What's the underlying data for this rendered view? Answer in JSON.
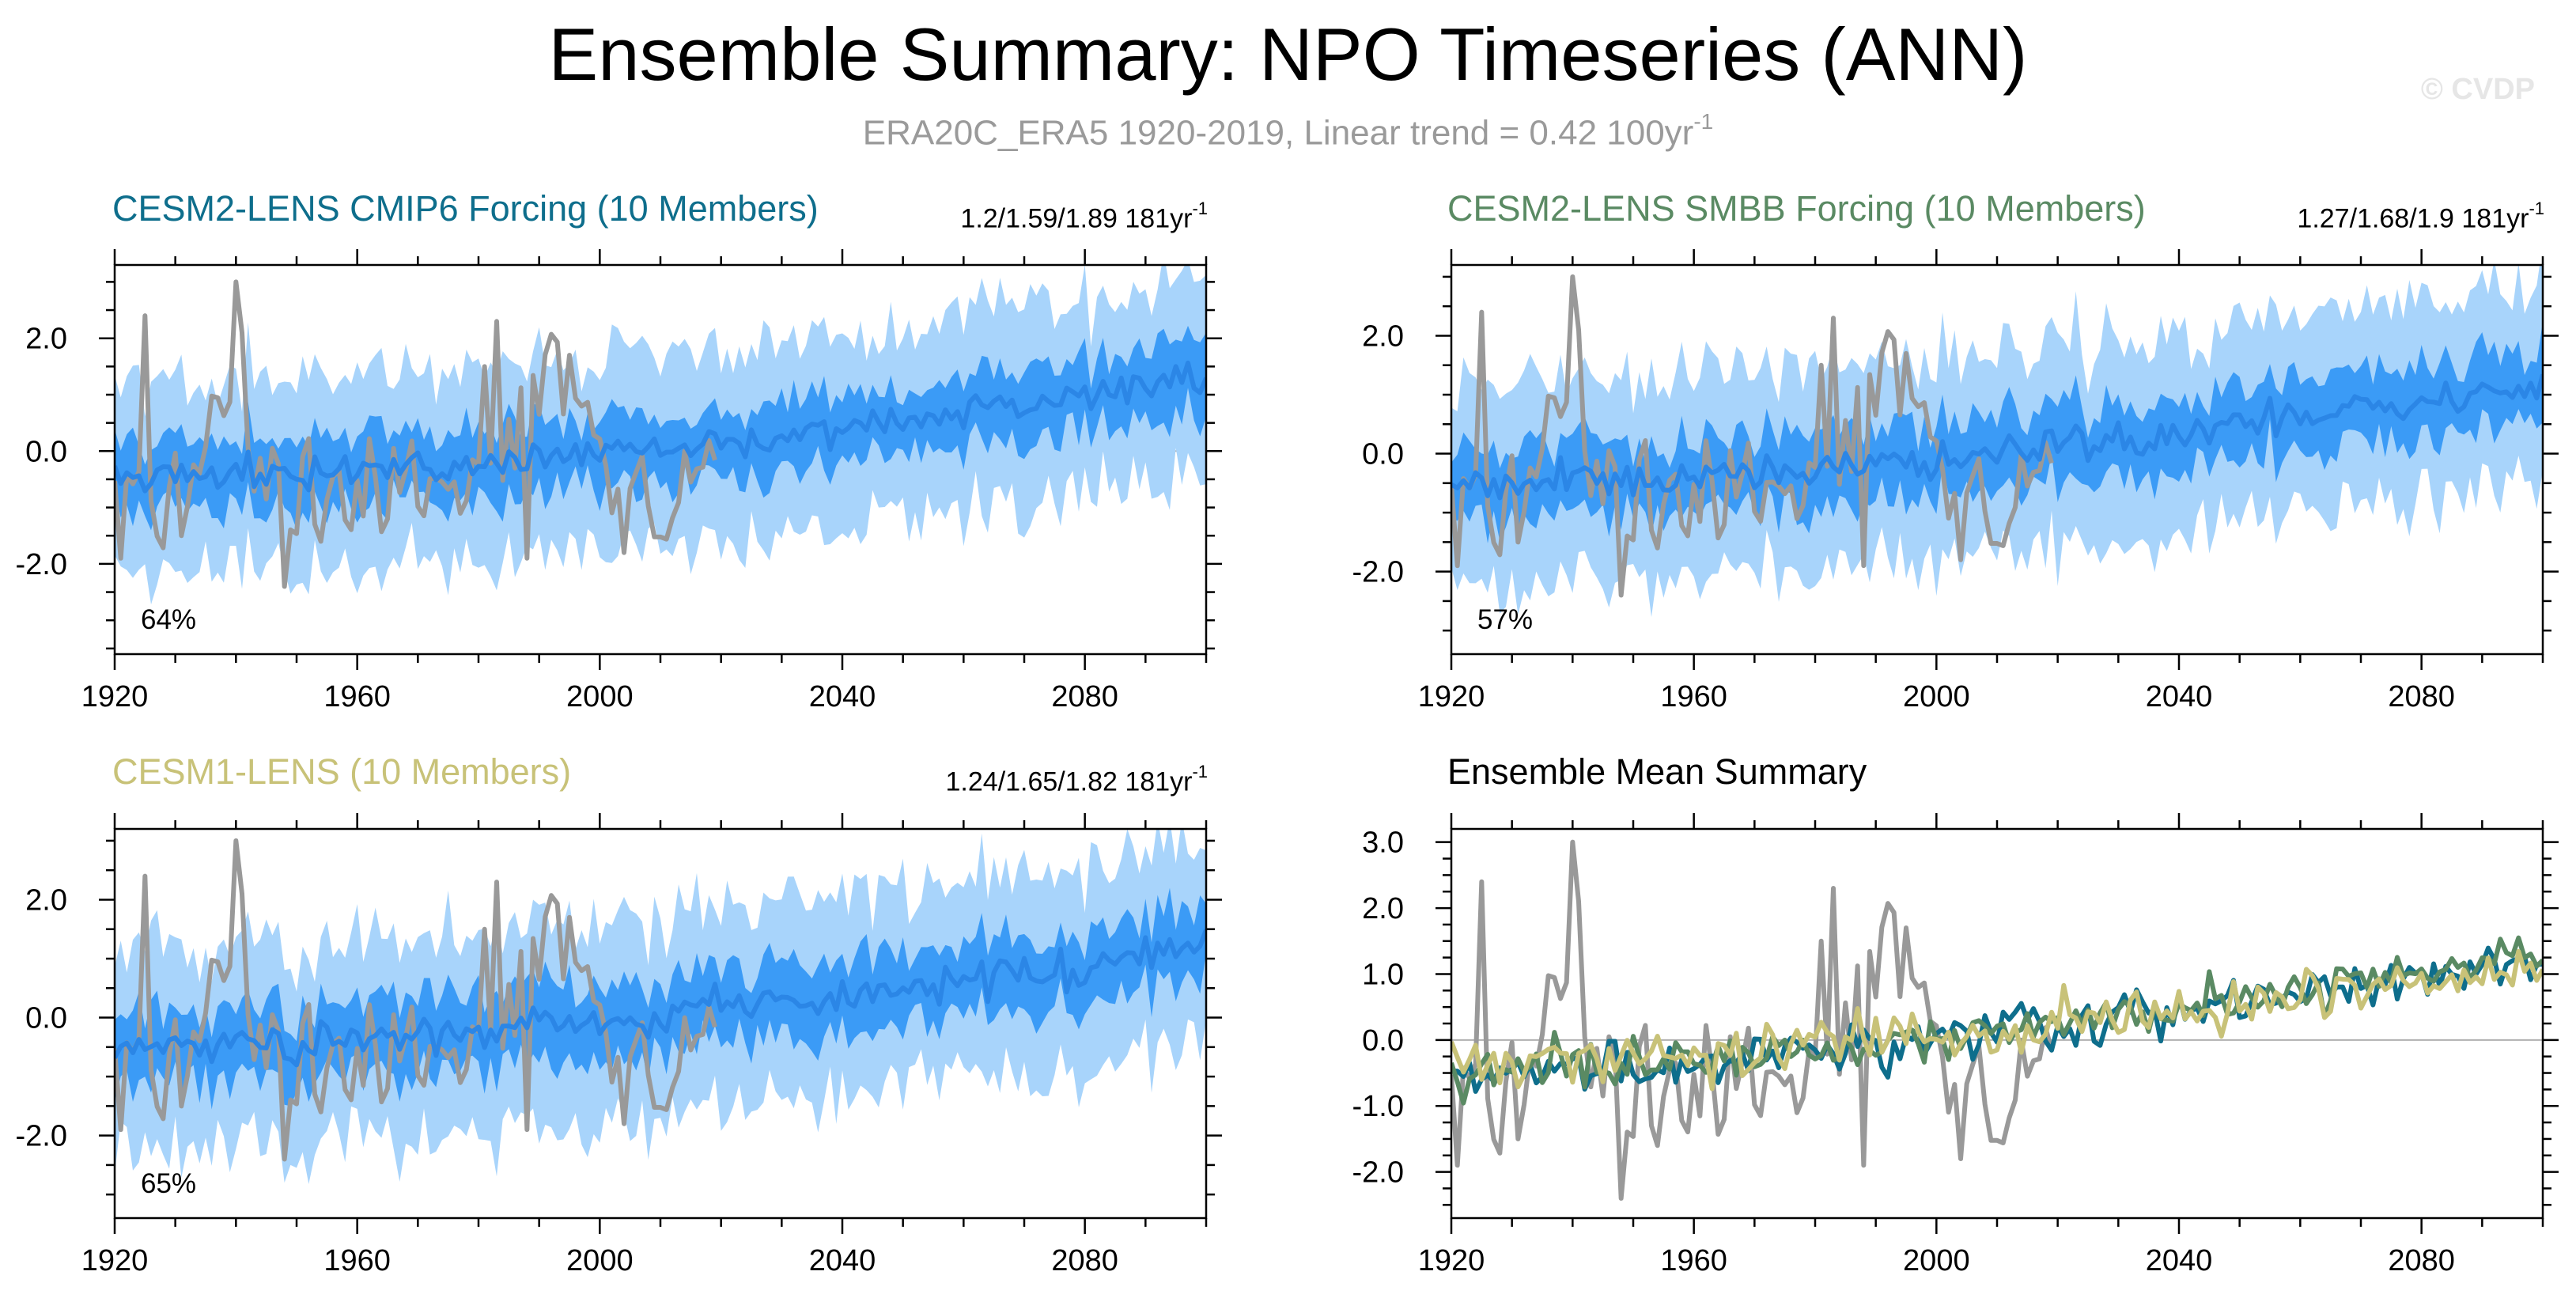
{
  "header": {
    "title": "Ensemble Summary: NPO Timeseries (ANN)",
    "subtitle_main": "ERA20C_ERA5 1920-2019, Linear trend = 0.42 100yr",
    "subtitle_exp": "-1",
    "watermark": "© CVDP"
  },
  "colors": {
    "band_outer": "#a8d4fb",
    "band_inner": "#3b9bf6",
    "ens_mean_line": "#2b86e6",
    "observations": "#999999",
    "cmip6": "#0e6e8c",
    "smbb": "#5a8a63",
    "cesm1": "#c8c278",
    "zero_line": "#b0b0b0"
  },
  "chart_data": [
    {
      "id": "cesm2-cmip6",
      "type": "area",
      "title": "CESM2-LENS CMIP6 Forcing (10 Members)",
      "title_color": "#0e6e8c",
      "stats": "1.2/1.59/1.89 181yr",
      "stats_exp": "-1",
      "percent_label": "64%",
      "x_range": [
        1920,
        2100
      ],
      "ylim": [
        -3.6,
        3.3
      ],
      "x_ticks": [
        1920,
        1960,
        2000,
        2040,
        2080
      ],
      "x_tick_labels": [
        "1920",
        "1960",
        "2000",
        "2040",
        "2080"
      ],
      "y_ticks": [
        2.0,
        0.0,
        -2.0
      ],
      "y_tick_labels": [
        "2.0",
        "0.0",
        "-2.0"
      ],
      "ens_mean_trend": [
        -0.5,
        1.3
      ],
      "obs_seed": 1,
      "mem_seed": 101,
      "series": [
        {
          "name": "Observations (ERA20C_ERA5)",
          "x_range": [
            1920,
            2019
          ]
        },
        {
          "name": "Ensemble mean",
          "x_range": [
            1920,
            2100
          ]
        },
        {
          "name": "Ensemble 25-75% range",
          "x_range": [
            1920,
            2100
          ]
        },
        {
          "name": "Ensemble 2.5-97.5% range",
          "x_range": [
            1920,
            2100
          ]
        }
      ]
    },
    {
      "id": "cesm2-smbb",
      "type": "area",
      "title": "CESM2-LENS SMBB Forcing (10 Members)",
      "title_color": "#5a8a63",
      "stats": "1.27/1.68/1.9 181yr",
      "stats_exp": "-1",
      "percent_label": "57%",
      "x_range": [
        1920,
        2100
      ],
      "ylim": [
        -3.4,
        3.2
      ],
      "x_ticks": [
        1920,
        1960,
        2000,
        2040,
        2080
      ],
      "x_tick_labels": [
        "1920",
        "1960",
        "2000",
        "2040",
        "2080"
      ],
      "y_ticks": [
        2.0,
        0.0,
        -2.0
      ],
      "y_tick_labels": [
        "2.0",
        "0.0",
        "-2.0"
      ],
      "ens_mean_trend": [
        -0.55,
        1.2
      ],
      "obs_seed": 1,
      "mem_seed": 202,
      "series": [
        {
          "name": "Observations (ERA20C_ERA5)",
          "x_range": [
            1920,
            2019
          ]
        },
        {
          "name": "Ensemble mean",
          "x_range": [
            1920,
            2100
          ]
        },
        {
          "name": "Ensemble 25-75% range",
          "x_range": [
            1920,
            2100
          ]
        },
        {
          "name": "Ensemble 2.5-97.5% range",
          "x_range": [
            1920,
            2100
          ]
        }
      ]
    },
    {
      "id": "cesm1",
      "type": "area",
      "title": "CESM1-LENS (10 Members)",
      "title_color": "#c8c278",
      "stats": "1.24/1.65/1.82 181yr",
      "stats_exp": "-1",
      "percent_label": "65%",
      "x_range": [
        1920,
        2100
      ],
      "ylim": [
        -3.4,
        3.2
      ],
      "x_ticks": [
        1920,
        1960,
        2000,
        2040,
        2080
      ],
      "x_tick_labels": [
        "1920",
        "1960",
        "2000",
        "2040",
        "2080"
      ],
      "y_ticks": [
        2.0,
        0.0,
        -2.0
      ],
      "y_tick_labels": [
        "2.0",
        "0.0",
        "-2.0"
      ],
      "ens_mean_trend": [
        -0.5,
        1.2
      ],
      "obs_seed": 1,
      "mem_seed": 303,
      "series": [
        {
          "name": "Observations (ERA20C_ERA5)",
          "x_range": [
            1920,
            2019
          ]
        },
        {
          "name": "Ensemble mean",
          "x_range": [
            1920,
            2100
          ]
        },
        {
          "name": "Ensemble 25-75% range",
          "x_range": [
            1920,
            2100
          ]
        },
        {
          "name": "Ensemble 2.5-97.5% range",
          "x_range": [
            1920,
            2100
          ]
        }
      ]
    },
    {
      "id": "ensemble-mean-summary",
      "type": "line",
      "title": "Ensemble Mean Summary",
      "title_color": "#000000",
      "stats": "",
      "stats_exp": "",
      "percent_label": "",
      "x_range": [
        1920,
        2100
      ],
      "ylim": [
        -2.7,
        3.2
      ],
      "x_ticks": [
        1920,
        1960,
        2000,
        2040,
        2080
      ],
      "x_tick_labels": [
        "1920",
        "1960",
        "2000",
        "2040",
        "2080"
      ],
      "y_ticks": [
        3.0,
        2.0,
        1.0,
        0.0,
        -1.0,
        -2.0
      ],
      "y_tick_labels": [
        "3.0",
        "2.0",
        "1.0",
        "0.0",
        "-1.0",
        "-2.0"
      ],
      "obs_seed": 1,
      "series": [
        {
          "name": "Observations (ERA20C_ERA5)",
          "color": "#999999",
          "x_range": [
            1920,
            2019
          ]
        },
        {
          "name": "CESM2-LENS CMIP6 Forcing",
          "color": "#0e6e8c",
          "trend": [
            -0.45,
            1.25
          ],
          "seed": 11
        },
        {
          "name": "CESM2-LENS SMBB Forcing",
          "color": "#5a8a63",
          "trend": [
            -0.5,
            1.3
          ],
          "seed": 22
        },
        {
          "name": "CESM1-LENS",
          "color": "#c8c278",
          "trend": [
            -0.35,
            1.15
          ],
          "seed": 33
        }
      ]
    }
  ]
}
